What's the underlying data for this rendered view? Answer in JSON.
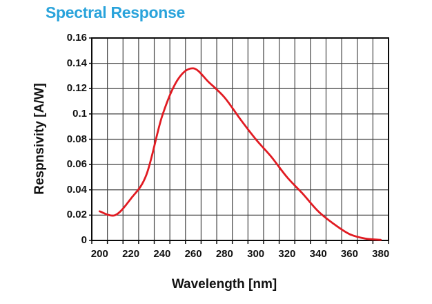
{
  "title": "Spectral Response",
  "axes": {
    "x_label": "Wavelength [nm]",
    "y_label": "Respnsivity [A/W]"
  },
  "y_tick_labels": [
    "0.16",
    "0.14",
    "0.12",
    "0.1",
    "0.08",
    "0.06",
    "0.04",
    "0.02",
    "0"
  ],
  "x_tick_labels": [
    "200",
    "220",
    "240",
    "260",
    "280",
    "300",
    "320",
    "340",
    "360",
    "380"
  ],
  "colors": {
    "title": "#29a3db",
    "curve": "#e11b22",
    "grid": "#444444",
    "border": "#0a0a0a",
    "text": "#111111"
  },
  "chart_data": {
    "type": "line",
    "title": "Spectral Response",
    "xlabel": "Wavelength [nm]",
    "ylabel": "Respnsivity [A/W]",
    "x": [
      200,
      210,
      220,
      230,
      240,
      250,
      260,
      270,
      280,
      290,
      300,
      310,
      320,
      330,
      340,
      350,
      360,
      370,
      380
    ],
    "values": [
      0.023,
      0.02,
      0.033,
      0.052,
      0.098,
      0.127,
      0.136,
      0.125,
      0.113,
      0.096,
      0.08,
      0.066,
      0.05,
      0.037,
      0.023,
      0.013,
      0.005,
      0.0015,
      0.0005
    ],
    "series_name": "Spectral response",
    "ylim": [
      0,
      0.16
    ],
    "y_tick_step": 0.02,
    "x_gridline_step_nm": 10,
    "x_label_step_nm": 20,
    "grid": "on (vertical every 10 nm, horizontal every 0.02 A/W)",
    "legend": "none",
    "peak": {
      "wavelength_nm": 260,
      "responsivity_aw": 0.136
    }
  }
}
